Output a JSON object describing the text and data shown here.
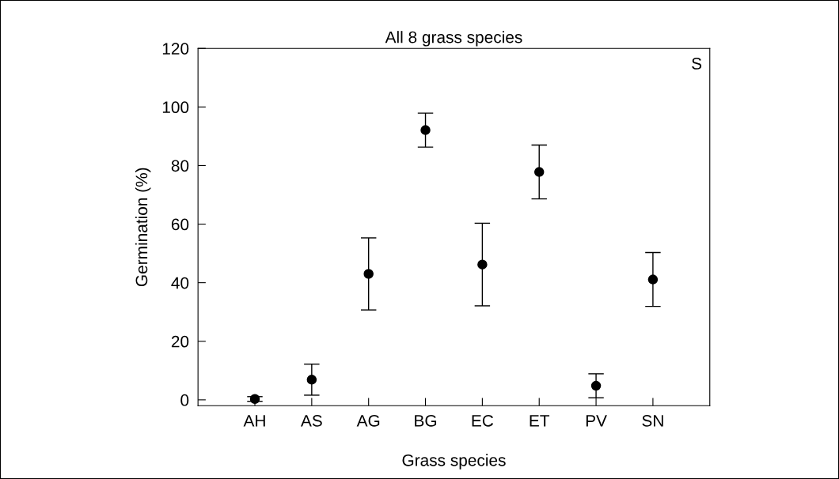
{
  "chart_data": {
    "type": "scatter",
    "title": "All 8 grass species",
    "xlabel": "Grass species",
    "ylabel": "Germination (%)",
    "categories": [
      "AH",
      "AS",
      "AG",
      "BG",
      "EC",
      "ET",
      "PV",
      "SN"
    ],
    "values": [
      0.3,
      6.9,
      43.0,
      92.1,
      46.2,
      77.8,
      4.8,
      41.1
    ],
    "errors": [
      0.8,
      5.3,
      12.3,
      5.8,
      14.1,
      9.2,
      4.1,
      9.2
    ],
    "color": "#000000",
    "marker": "circle",
    "ylim": [
      -2,
      120
    ],
    "yticks": [
      0,
      20,
      40,
      60,
      80,
      100,
      120
    ],
    "annotations": [
      "S"
    ],
    "grid": false,
    "legend": false
  }
}
